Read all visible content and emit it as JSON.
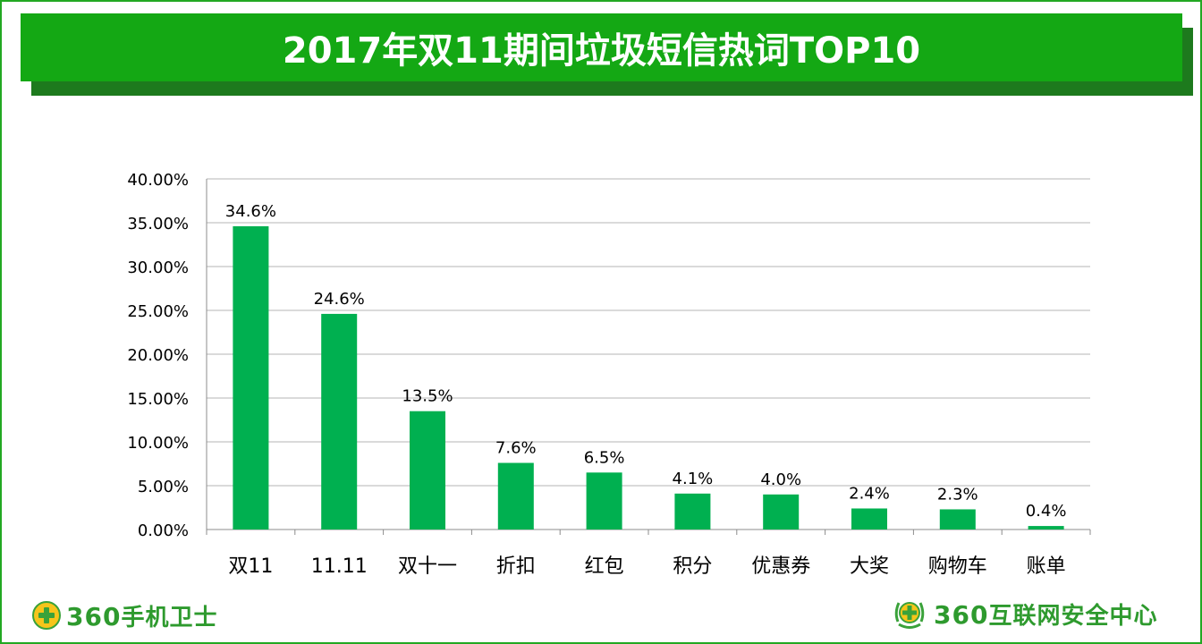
{
  "title": "2017年双11期间垃圾短信热词TOP10",
  "logos": {
    "left_num": "360",
    "left_name": "手机卫士",
    "right_num": "360",
    "right_name": "互联网安全中心"
  },
  "colors": {
    "bar": "#00b050",
    "title_bg": "#14a814",
    "frame": "#22a822",
    "logo_text": "#2e9a2e"
  },
  "chart_data": {
    "type": "bar",
    "categories": [
      "双11",
      "11.11",
      "双十一",
      "折扣",
      "红包",
      "积分",
      "优惠券",
      "大奖",
      "购物车",
      "账单"
    ],
    "values": [
      34.6,
      24.6,
      13.5,
      7.6,
      6.5,
      4.1,
      4.0,
      2.4,
      2.3,
      0.4
    ],
    "data_labels": [
      "34.6%",
      "24.6%",
      "13.5%",
      "7.6%",
      "6.5%",
      "4.1%",
      "4.0%",
      "2.4%",
      "2.3%",
      "0.4%"
    ],
    "y_ticks": [
      0,
      5,
      10,
      15,
      20,
      25,
      30,
      35,
      40
    ],
    "y_tick_labels": [
      "0.00%",
      "5.00%",
      "10.00%",
      "15.00%",
      "20.00%",
      "25.00%",
      "30.00%",
      "35.00%",
      "40.00%"
    ],
    "ylim": [
      0,
      40
    ],
    "grid": true,
    "legend": "none"
  }
}
